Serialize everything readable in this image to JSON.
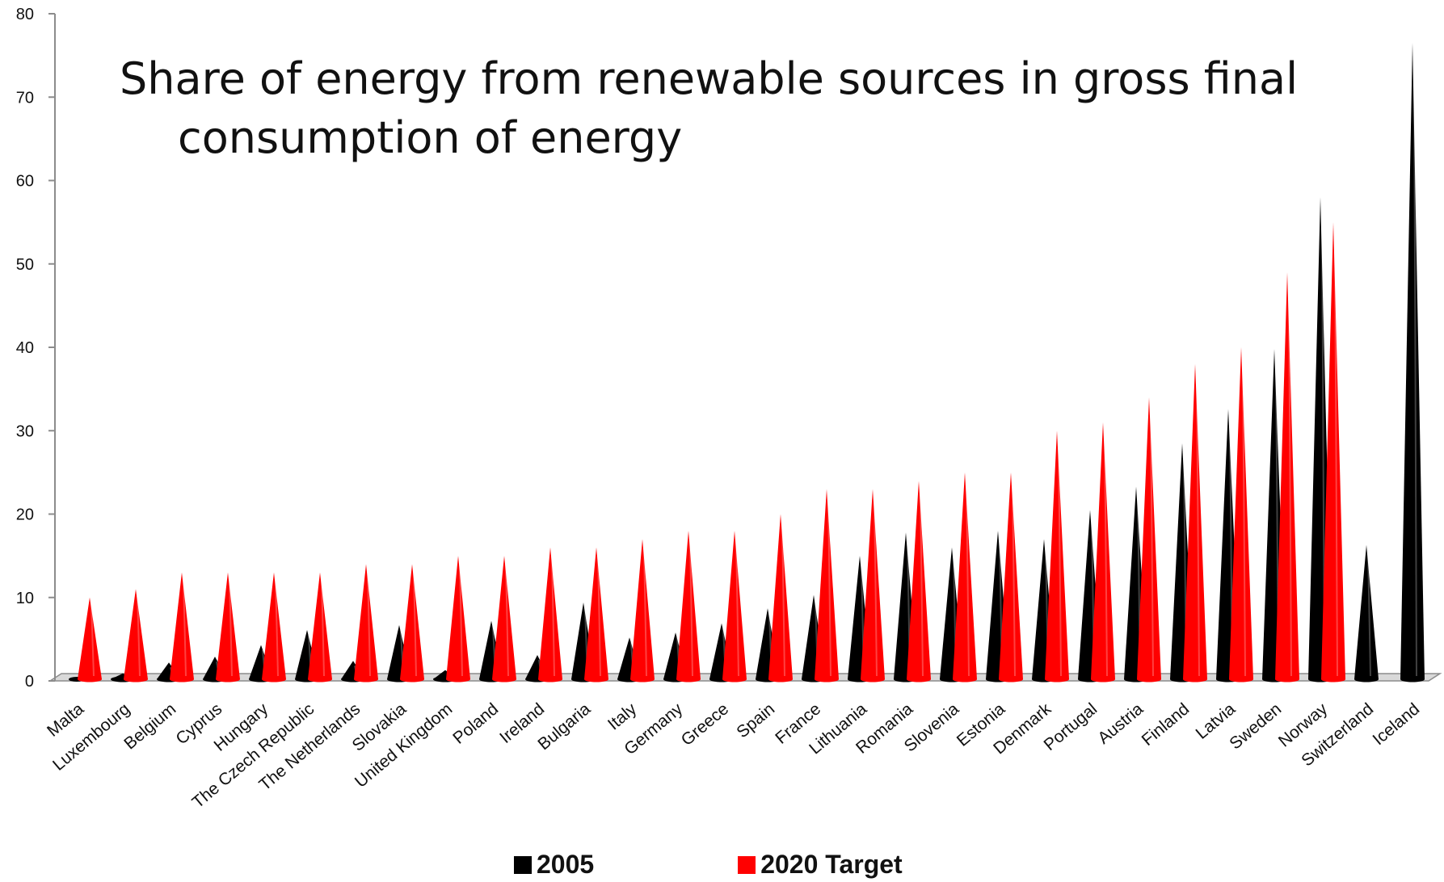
{
  "chart_data": {
    "type": "bar",
    "title_line1": "Share of energy from renewable sources in gross final",
    "title_line2": "consumption of energy",
    "xlabel": "",
    "ylabel": "",
    "ylim": [
      0,
      80
    ],
    "yticks": [
      0,
      10,
      20,
      30,
      40,
      50,
      60,
      70,
      80
    ],
    "grid": false,
    "legend_position": "bottom",
    "categories": [
      "Malta",
      "Luxembourg",
      "Belgium",
      "Cyprus",
      "Hungary",
      "The Czech Republic",
      "The Netherlands",
      "Slovakia",
      "United Kingdom",
      "Poland",
      "Ireland",
      "Bulgaria",
      "Italy",
      "Germany",
      "Greece",
      "Spain",
      "France",
      "Lithuania",
      "Romania",
      "Slovenia",
      "Estonia",
      "Denmark",
      "Portugal",
      "Austria",
      "Finland",
      "Latvia",
      "Sweden",
      "Norway",
      "Switzerland",
      "Iceland"
    ],
    "series": [
      {
        "name": "2005",
        "color": "#000000",
        "values": [
          0,
          0.9,
          2.2,
          2.9,
          4.3,
          6.1,
          2.4,
          6.7,
          1.3,
          7.2,
          3.1,
          9.4,
          5.2,
          5.8,
          6.9,
          8.7,
          10.3,
          15.0,
          17.8,
          16.0,
          18.0,
          17.0,
          20.5,
          23.3,
          28.5,
          32.6,
          39.8,
          58.0,
          16.3,
          76.5
        ]
      },
      {
        "name": "2020 Target",
        "color": "#ff0000",
        "values": [
          10,
          11,
          13,
          13,
          13,
          13,
          14,
          14,
          15,
          15,
          16,
          16,
          17,
          18,
          18,
          20,
          23,
          23,
          24,
          25,
          25,
          30,
          31,
          34,
          38,
          40,
          49,
          55,
          null,
          null
        ]
      }
    ]
  }
}
